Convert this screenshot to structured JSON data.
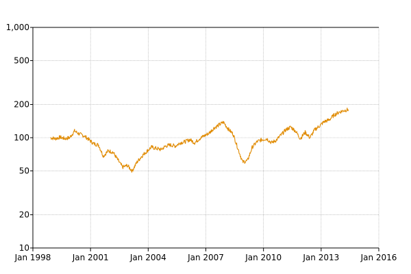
{
  "chart_data": {
    "type": "line",
    "title": "",
    "xlabel": "",
    "ylabel": "",
    "y_scale": "log",
    "ylim": [
      10,
      1000
    ],
    "xlim": [
      "1998-01",
      "2016-01"
    ],
    "grid": true,
    "legend": "none",
    "line_color": "#e08a00",
    "x_ticks": [
      {
        "label": "Jan 1998",
        "date": "1998-01"
      },
      {
        "label": "Jan 2001",
        "date": "2001-01"
      },
      {
        "label": "Jan 2004",
        "date": "2004-01"
      },
      {
        "label": "Jan 2007",
        "date": "2007-01"
      },
      {
        "label": "Jan 2010",
        "date": "2010-01"
      },
      {
        "label": "Jan 2013",
        "date": "2013-01"
      },
      {
        "label": "Jan 2016",
        "date": "2016-01"
      }
    ],
    "y_ticks": [
      {
        "label": "10",
        "value": 10
      },
      {
        "label": "20",
        "value": 20
      },
      {
        "label": "50",
        "value": 50
      },
      {
        "label": "100",
        "value": 100
      },
      {
        "label": "200",
        "value": 200
      },
      {
        "label": "500",
        "value": 500
      },
      {
        "label": "1,000",
        "value": 1000
      }
    ],
    "series": [
      {
        "x": [
          "1998-12",
          "1999-03",
          "1999-06",
          "1999-09",
          "1999-12",
          "2000-03",
          "2000-06",
          "2000-09",
          "2000-12",
          "2001-03",
          "2001-06",
          "2001-09",
          "2001-12",
          "2002-03",
          "2002-06",
          "2002-09",
          "2002-12",
          "2003-03",
          "2003-06",
          "2003-09",
          "2003-12",
          "2004-03",
          "2004-06",
          "2004-09",
          "2004-12",
          "2005-03",
          "2005-06",
          "2005-09",
          "2005-12",
          "2006-03",
          "2006-06",
          "2006-09",
          "2006-12",
          "2007-03",
          "2007-06",
          "2007-09",
          "2007-12",
          "2008-03",
          "2008-06",
          "2008-09",
          "2008-12",
          "2009-03",
          "2009-06",
          "2009-09",
          "2009-12",
          "2010-03",
          "2010-06",
          "2010-09",
          "2010-12",
          "2011-03",
          "2011-06",
          "2011-09",
          "2011-12",
          "2012-03",
          "2012-06",
          "2012-09",
          "2012-12",
          "2013-03",
          "2013-06",
          "2013-09",
          "2013-12",
          "2014-03",
          "2014-06"
        ],
        "values": [
          100,
          98,
          101,
          98,
          100,
          115,
          108,
          104,
          96,
          88,
          86,
          68,
          76,
          74,
          63,
          54,
          56,
          50,
          60,
          68,
          75,
          82,
          80,
          78,
          84,
          86,
          84,
          90,
          92,
          96,
          90,
          98,
          104,
          110,
          122,
          130,
          138,
          120,
          108,
          80,
          60,
          62,
          82,
          92,
          96,
          98,
          90,
          95,
          106,
          118,
          125,
          115,
          98,
          112,
          100,
          118,
          128,
          140,
          145,
          160,
          170,
          176,
          180
        ]
      }
    ]
  }
}
